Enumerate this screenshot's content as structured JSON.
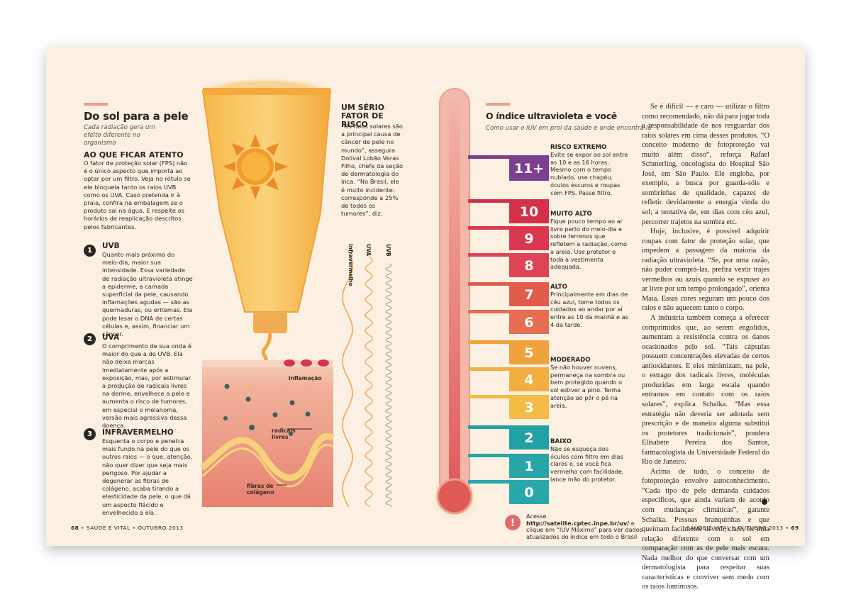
{
  "left_page": {
    "title": "Do sol para a pele",
    "subtitle": "Cada radiação gera um efeito diferente no organismo",
    "section_heading": "AO QUE FICAR ATENTO",
    "intro": "O fator de proteção solar (FPS) não é o único aspecto que importa ao optar por um filtro. Veja no rótulo se ele bloqueia tanto os raios UVB como os UVA. Caso pretenda ir à praia, confira na embalagem se o produto sai na água. E respeite os horários de reaplicação descritos pelos fabricantes.",
    "items": [
      {
        "number": "1",
        "heading": "UVB",
        "text": "Quanto mais próximo do meio-dia, maior sua intensidade. Essa variedade de radiação ultravioleta atinge a epiderme, a camada superficial da pele, causando inflamações agudas — são as queimaduras, ou eritemas. Ela pode lesar o DNA de certas células e, assim, financiar um câncer."
      },
      {
        "number": "2",
        "heading": "UVA",
        "text": "O comprimento de sua onda é maior do que a do UVB. Ela não deixa marcas imediatamente após a exposição, mas, por estimular a produção de radicais livres na derme, envelhece a pele e aumenta o risco de tumores, em especial o melanoma, versão mais agressiva dessa doença."
      },
      {
        "number": "3",
        "heading": "INFRAVERMELHO",
        "text": "Esquenta o corpo e penetra mais fundo na pele do que os outros raios — o que, atenção, não quer dizer que seja mais perigoso. Por ajudar a degenerar as fibras de colágeno, acaba tirando a elasticidade da pele, o que dá um aspecto flácido e envelhecido a ela."
      }
    ],
    "sidebar": {
      "heading": "UM SÉRIO FATOR DE RISCO",
      "text": "“Os raios solares são a principal causa de câncer de pele no mundo”, assegura Dolival Lobão Veras Filho, chefe da seção de dermatologia do Inca. “No Brasil, ele é muito incidente: corresponde a 25% de todos os tumores”, diz."
    },
    "illustration_labels": {
      "inflammation": "inflamação",
      "radicals": "radicais livres",
      "collagen": "fibras de colágeno",
      "infrared": "infravermelho",
      "uva": "UVA",
      "uvb": "UVB"
    },
    "footer": {
      "page_number": "68",
      "text": "SAÚDE É VITAL • OUTUBRO 2013"
    }
  },
  "right_page": {
    "title": "O índice ultravioleta e você",
    "subtitle": "Como usar o IUV em prol da saúde e onde encontrá-lo",
    "levels": [
      {
        "label": "11+",
        "color": "#7d3f8f"
      },
      {
        "label": "10",
        "color": "#d62f4a"
      },
      {
        "label": "9",
        "color": "#db3850"
      },
      {
        "label": "8",
        "color": "#df4356"
      },
      {
        "label": "7",
        "color": "#e05d4b"
      },
      {
        "label": "6",
        "color": "#e76d50"
      },
      {
        "label": "5",
        "color": "#f0a23d"
      },
      {
        "label": "4",
        "color": "#f2ae40"
      },
      {
        "label": "3",
        "color": "#f4bc46"
      },
      {
        "label": "2",
        "color": "#22a1a4"
      },
      {
        "label": "1",
        "color": "#27a5a7"
      },
      {
        "label": "0",
        "color": "#2aa8a9"
      }
    ],
    "categories": [
      {
        "heading": "RISCO EXTREMO",
        "text": "Evite se expor ao sol entre as 10 e as 16 horas. Mesmo com o tempo nublado, use chapéu, óculos escuros e roupas com FPS. Passe filtro."
      },
      {
        "heading": "MUITO ALTO",
        "text": "Fique pouco tempo ao ar livre perto do meio-dia e sobre terrenos que refletem a radiação, como a areia. Use protetor e toda a vestimenta adequada."
      },
      {
        "heading": "ALTO",
        "text": "Principalmente em dias de céu azul, tome todos os cuidados ao andar por aí entre as 10 da manhã e as 4 da tarde."
      },
      {
        "heading": "MODERADO",
        "text": "Se não houver nuvens, permaneça na sombra ou bem protegido quando o sol estiver a pino. Tenha atenção ao pôr o pé na areia."
      },
      {
        "heading": "BAIXO",
        "text": "Não se esqueça dos óculos com filtro em dias claros e, se você fica vermelho com facilidade, lance mão do protetor."
      }
    ],
    "note": {
      "icon": "!",
      "before": "Acesse",
      "link": "http://satelite.cptec.inpe.br/uv/",
      "after": "e clique em “IUV Máximo” para ver dados atualizados do índice em todo o Brasil"
    },
    "body": [
      "Se é difícil — e caro — utilizar o filtro como recomendado, não dá para jogar toda a responsabilidade de nos resguardar dos raios solares em cima desses produtos. “O conceito moderno de fotoproteção vai muito além disso”, reforça Rafael Schmerling, oncologista do Hospital São José, em São Paulo. Ele engloba, por exemplo, a busca por guarda-sóis e sombrinhas de qualidade, capazes de refletir devidamente a energia vinda do sol; a tentativa de, em dias com céu azul, percorrer trajetos na sombra etc.",
      "Hoje, inclusive, é possível adquirir roupas com fator de proteção solar, que impedem a passagem da maioria da radiação ultravioleta. “Se, por uma razão, não puder comprá-las, prefira vestir trajes vermelhos ou azuis quando se expuser ao ar livre por um tempo prolongado”, orienta Maia. Essas cores seguram um pouco dos raios e não aquecem tanto o corpo.",
      "A indústria também começa a oferecer comprimidos que, ao serem engolidos, aumentam a resistência contra os danos ocasionados pelo sol. “Tais cápsulas possuem concentrações elevadas de certos antioxidantes. E eles minimizam, na pele, o estrago dos radicais livres, moléculas produzidas em larga escala quando entramos em contato com os raios solares”, explica Schalka. “Mas essa estratégia não deveria ser adotada sem prescrição e de maneira alguma substitui os protetores tradicionais”, pondera Elisabete Pereira dos Santos, farmacologista da Universidade Federal do Rio de Janeiro.",
      "Acima de tudo, o conceito de fotoproteção envolve autoconhecimento. “Cada tipo de pele demanda cuidados específicos, que ainda variam de acordo com mudanças climáticas”, garante Schalka. Pessoas branquinhas e que queimam facilmente devem, claro, ter uma relação diferente com o sol em comparação com as de pele mais escura. Nada melhor do que conversar com um dermatologista para respeitar suas características e conviver sem medo com os raios luminosos."
    ],
    "footer": {
      "text": "SAÚDE É VITAL • OUTUBRO 2013",
      "page_number": "69"
    }
  }
}
